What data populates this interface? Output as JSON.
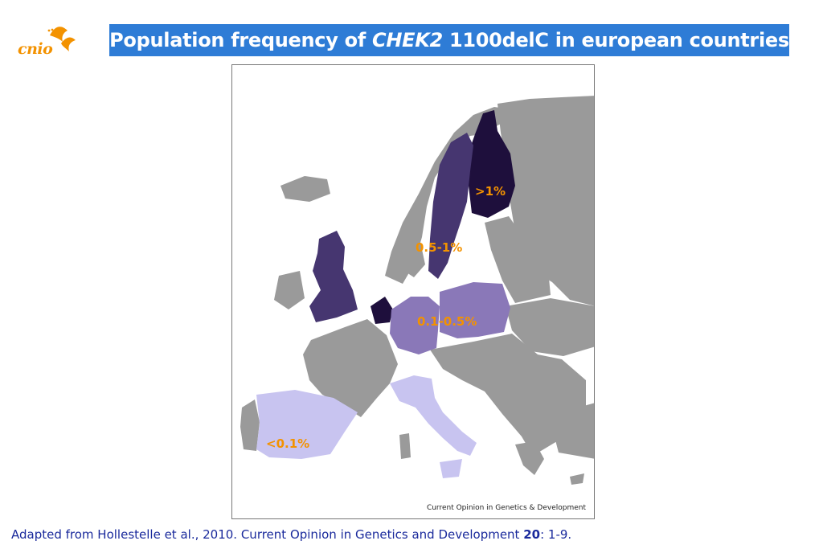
{
  "logo": {
    "text": "cnio",
    "icon": "cnio-figure-icon",
    "color": "#f39200"
  },
  "title": {
    "prefix": "Population frequency of ",
    "gene": "CHEK2",
    "suffix": " 1100delC in european countries"
  },
  "colors": {
    "title_bar": "#2e7cd6",
    "land_other": "#9a9a9a",
    "label_text": "#f39200",
    "freq_gt1": "#1e0f3c",
    "freq_05_1": "#463670",
    "freq_01_05": "#8a78b8",
    "freq_lt01": "#c8c4f0"
  },
  "map": {
    "credit": "Current Opinion in Genetics & Development",
    "labels": {
      "gt1": ">1%",
      "range_05_1": "0.5-1%",
      "range_01_05": "0.1-0.5%",
      "lt01": "<0.1%"
    }
  },
  "citation": {
    "prefix": "Adapted from Hollestelle et al., 2010. Current Opinion in Genetics and Development ",
    "volume": "20",
    "suffix": ": 1-9."
  }
}
